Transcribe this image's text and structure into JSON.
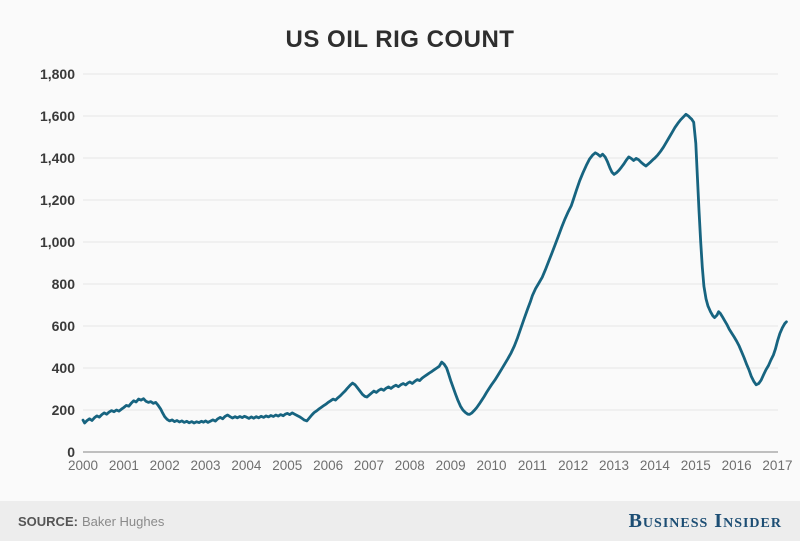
{
  "title": "US OIL RIG COUNT",
  "footer": {
    "source_label": "SOURCE:",
    "source_value": "Baker Hughes",
    "brand": "Business Insider"
  },
  "colors": {
    "background": "#fafafa",
    "line": "#176480",
    "gridline": "#ebebeb",
    "axis_line": "#ababab",
    "y_tick_text": "#3a3a3a",
    "x_tick_text": "#6f6f6f",
    "footer_bg": "#ededed",
    "brand_navy": "#1d4e74"
  },
  "chart_data": {
    "type": "line",
    "title": "US OIL RIG COUNT",
    "xlabel": "",
    "ylabel": "",
    "grid": "horizontal",
    "legend": "none",
    "x_range": [
      2000,
      2017.25
    ],
    "ylim": [
      0,
      1800
    ],
    "y_tick_values": [
      0,
      200,
      400,
      600,
      800,
      1000,
      1200,
      1400,
      1600,
      1800
    ],
    "y_tick_labels": [
      "0",
      "200",
      "400",
      "600",
      "800",
      "1,000",
      "1,200",
      "1,400",
      "1,600",
      "1,800"
    ],
    "x_tick_values": [
      2000,
      2001,
      2002,
      2003,
      2004,
      2005,
      2006,
      2007,
      2008,
      2009,
      2010,
      2011,
      2012,
      2013,
      2014,
      2015,
      2016,
      2017
    ],
    "x_tick_labels": [
      "2000",
      "2001",
      "2002",
      "2003",
      "2004",
      "2005",
      "2006",
      "2007",
      "2008",
      "2009",
      "2010",
      "2011",
      "2012",
      "2013",
      "2014",
      "2015",
      "2016",
      "2017"
    ],
    "series": [
      {
        "name": "US oil rig count",
        "color": "#176480",
        "points": [
          [
            2000.0,
            152
          ],
          [
            2000.04,
            138
          ],
          [
            2000.1,
            150
          ],
          [
            2000.16,
            158
          ],
          [
            2000.22,
            150
          ],
          [
            2000.28,
            163
          ],
          [
            2000.34,
            172
          ],
          [
            2000.4,
            166
          ],
          [
            2000.46,
            178
          ],
          [
            2000.52,
            186
          ],
          [
            2000.58,
            180
          ],
          [
            2000.64,
            190
          ],
          [
            2000.7,
            197
          ],
          [
            2000.76,
            192
          ],
          [
            2000.82,
            200
          ],
          [
            2000.88,
            195
          ],
          [
            2000.94,
            204
          ],
          [
            2001.0,
            212
          ],
          [
            2001.06,
            222
          ],
          [
            2001.12,
            218
          ],
          [
            2001.18,
            232
          ],
          [
            2001.24,
            244
          ],
          [
            2001.3,
            238
          ],
          [
            2001.36,
            252
          ],
          [
            2001.42,
            247
          ],
          [
            2001.48,
            254
          ],
          [
            2001.54,
            242
          ],
          [
            2001.6,
            236
          ],
          [
            2001.66,
            240
          ],
          [
            2001.72,
            232
          ],
          [
            2001.78,
            236
          ],
          [
            2001.84,
            222
          ],
          [
            2001.9,
            205
          ],
          [
            2001.95,
            185
          ],
          [
            2002.0,
            168
          ],
          [
            2002.06,
            155
          ],
          [
            2002.12,
            148
          ],
          [
            2002.18,
            153
          ],
          [
            2002.24,
            145
          ],
          [
            2002.3,
            150
          ],
          [
            2002.36,
            143
          ],
          [
            2002.42,
            148
          ],
          [
            2002.48,
            141
          ],
          [
            2002.54,
            146
          ],
          [
            2002.6,
            139
          ],
          [
            2002.66,
            145
          ],
          [
            2002.72,
            138
          ],
          [
            2002.78,
            144
          ],
          [
            2002.84,
            140
          ],
          [
            2002.9,
            146
          ],
          [
            2002.95,
            142
          ],
          [
            2003.0,
            148
          ],
          [
            2003.06,
            141
          ],
          [
            2003.12,
            147
          ],
          [
            2003.18,
            153
          ],
          [
            2003.24,
            147
          ],
          [
            2003.3,
            158
          ],
          [
            2003.36,
            165
          ],
          [
            2003.42,
            158
          ],
          [
            2003.48,
            170
          ],
          [
            2003.54,
            176
          ],
          [
            2003.6,
            168
          ],
          [
            2003.66,
            162
          ],
          [
            2003.72,
            168
          ],
          [
            2003.78,
            163
          ],
          [
            2003.84,
            169
          ],
          [
            2003.9,
            164
          ],
          [
            2003.95,
            170
          ],
          [
            2004.0,
            166
          ],
          [
            2004.06,
            160
          ],
          [
            2004.12,
            167
          ],
          [
            2004.18,
            161
          ],
          [
            2004.24,
            168
          ],
          [
            2004.3,
            163
          ],
          [
            2004.36,
            170
          ],
          [
            2004.42,
            165
          ],
          [
            2004.48,
            172
          ],
          [
            2004.54,
            167
          ],
          [
            2004.6,
            174
          ],
          [
            2004.66,
            169
          ],
          [
            2004.72,
            176
          ],
          [
            2004.78,
            171
          ],
          [
            2004.84,
            178
          ],
          [
            2004.9,
            173
          ],
          [
            2004.95,
            180
          ],
          [
            2005.0,
            184
          ],
          [
            2005.06,
            178
          ],
          [
            2005.12,
            186
          ],
          [
            2005.18,
            180
          ],
          [
            2005.24,
            174
          ],
          [
            2005.3,
            168
          ],
          [
            2005.36,
            160
          ],
          [
            2005.42,
            152
          ],
          [
            2005.48,
            148
          ],
          [
            2005.54,
            162
          ],
          [
            2005.6,
            176
          ],
          [
            2005.66,
            188
          ],
          [
            2005.72,
            196
          ],
          [
            2005.78,
            205
          ],
          [
            2005.84,
            214
          ],
          [
            2005.9,
            222
          ],
          [
            2005.95,
            228
          ],
          [
            2006.0,
            236
          ],
          [
            2006.06,
            244
          ],
          [
            2006.12,
            252
          ],
          [
            2006.18,
            247
          ],
          [
            2006.24,
            258
          ],
          [
            2006.3,
            268
          ],
          [
            2006.36,
            280
          ],
          [
            2006.42,
            292
          ],
          [
            2006.48,
            305
          ],
          [
            2006.54,
            318
          ],
          [
            2006.6,
            328
          ],
          [
            2006.66,
            320
          ],
          [
            2006.72,
            305
          ],
          [
            2006.78,
            290
          ],
          [
            2006.84,
            275
          ],
          [
            2006.9,
            265
          ],
          [
            2006.95,
            262
          ],
          [
            2007.0,
            270
          ],
          [
            2007.06,
            280
          ],
          [
            2007.12,
            290
          ],
          [
            2007.18,
            284
          ],
          [
            2007.24,
            294
          ],
          [
            2007.3,
            300
          ],
          [
            2007.36,
            294
          ],
          [
            2007.42,
            304
          ],
          [
            2007.48,
            310
          ],
          [
            2007.54,
            303
          ],
          [
            2007.6,
            312
          ],
          [
            2007.66,
            318
          ],
          [
            2007.72,
            311
          ],
          [
            2007.78,
            320
          ],
          [
            2007.84,
            326
          ],
          [
            2007.9,
            319
          ],
          [
            2007.95,
            328
          ],
          [
            2008.0,
            334
          ],
          [
            2008.06,
            326
          ],
          [
            2008.12,
            336
          ],
          [
            2008.18,
            345
          ],
          [
            2008.24,
            340
          ],
          [
            2008.3,
            352
          ],
          [
            2008.36,
            360
          ],
          [
            2008.42,
            368
          ],
          [
            2008.48,
            376
          ],
          [
            2008.54,
            384
          ],
          [
            2008.6,
            392
          ],
          [
            2008.66,
            400
          ],
          [
            2008.72,
            408
          ],
          [
            2008.78,
            428
          ],
          [
            2008.84,
            418
          ],
          [
            2008.9,
            400
          ],
          [
            2008.95,
            372
          ],
          [
            2009.0,
            340
          ],
          [
            2009.06,
            308
          ],
          [
            2009.12,
            275
          ],
          [
            2009.18,
            245
          ],
          [
            2009.24,
            218
          ],
          [
            2009.3,
            200
          ],
          [
            2009.36,
            188
          ],
          [
            2009.42,
            180
          ],
          [
            2009.46,
            179
          ],
          [
            2009.52,
            186
          ],
          [
            2009.58,
            198
          ],
          [
            2009.64,
            212
          ],
          [
            2009.7,
            228
          ],
          [
            2009.76,
            246
          ],
          [
            2009.82,
            264
          ],
          [
            2009.88,
            284
          ],
          [
            2009.94,
            302
          ],
          [
            2010.0,
            320
          ],
          [
            2010.08,
            342
          ],
          [
            2010.16,
            366
          ],
          [
            2010.24,
            392
          ],
          [
            2010.32,
            418
          ],
          [
            2010.4,
            444
          ],
          [
            2010.48,
            472
          ],
          [
            2010.56,
            505
          ],
          [
            2010.64,
            545
          ],
          [
            2010.72,
            590
          ],
          [
            2010.8,
            635
          ],
          [
            2010.88,
            678
          ],
          [
            2010.95,
            715
          ],
          [
            2011.0,
            745
          ],
          [
            2011.08,
            778
          ],
          [
            2011.16,
            805
          ],
          [
            2011.24,
            832
          ],
          [
            2011.32,
            868
          ],
          [
            2011.4,
            908
          ],
          [
            2011.48,
            948
          ],
          [
            2011.56,
            988
          ],
          [
            2011.64,
            1030
          ],
          [
            2011.72,
            1072
          ],
          [
            2011.8,
            1110
          ],
          [
            2011.88,
            1145
          ],
          [
            2011.95,
            1172
          ],
          [
            2012.0,
            1200
          ],
          [
            2012.08,
            1248
          ],
          [
            2012.16,
            1292
          ],
          [
            2012.24,
            1330
          ],
          [
            2012.32,
            1365
          ],
          [
            2012.4,
            1395
          ],
          [
            2012.48,
            1415
          ],
          [
            2012.54,
            1425
          ],
          [
            2012.6,
            1418
          ],
          [
            2012.66,
            1408
          ],
          [
            2012.72,
            1418
          ],
          [
            2012.78,
            1405
          ],
          [
            2012.84,
            1382
          ],
          [
            2012.9,
            1352
          ],
          [
            2012.95,
            1332
          ],
          [
            2013.0,
            1322
          ],
          [
            2013.06,
            1330
          ],
          [
            2013.12,
            1342
          ],
          [
            2013.18,
            1356
          ],
          [
            2013.24,
            1372
          ],
          [
            2013.3,
            1390
          ],
          [
            2013.36,
            1405
          ],
          [
            2013.42,
            1398
          ],
          [
            2013.48,
            1388
          ],
          [
            2013.54,
            1398
          ],
          [
            2013.6,
            1392
          ],
          [
            2013.66,
            1380
          ],
          [
            2013.72,
            1370
          ],
          [
            2013.78,
            1362
          ],
          [
            2013.84,
            1372
          ],
          [
            2013.9,
            1382
          ],
          [
            2013.95,
            1392
          ],
          [
            2014.0,
            1400
          ],
          [
            2014.07,
            1415
          ],
          [
            2014.14,
            1432
          ],
          [
            2014.21,
            1452
          ],
          [
            2014.28,
            1475
          ],
          [
            2014.35,
            1498
          ],
          [
            2014.42,
            1522
          ],
          [
            2014.49,
            1545
          ],
          [
            2014.56,
            1565
          ],
          [
            2014.63,
            1582
          ],
          [
            2014.7,
            1596
          ],
          [
            2014.76,
            1608
          ],
          [
            2014.82,
            1600
          ],
          [
            2014.86,
            1592
          ],
          [
            2014.9,
            1585
          ],
          [
            2014.95,
            1570
          ],
          [
            2015.0,
            1470
          ],
          [
            2015.04,
            1310
          ],
          [
            2015.08,
            1150
          ],
          [
            2015.12,
            1000
          ],
          [
            2015.16,
            880
          ],
          [
            2015.2,
            790
          ],
          [
            2015.25,
            730
          ],
          [
            2015.3,
            695
          ],
          [
            2015.36,
            668
          ],
          [
            2015.42,
            648
          ],
          [
            2015.46,
            640
          ],
          [
            2015.52,
            652
          ],
          [
            2015.56,
            668
          ],
          [
            2015.6,
            660
          ],
          [
            2015.65,
            645
          ],
          [
            2015.7,
            628
          ],
          [
            2015.76,
            608
          ],
          [
            2015.82,
            585
          ],
          [
            2015.88,
            566
          ],
          [
            2015.94,
            548
          ],
          [
            2016.0,
            528
          ],
          [
            2016.06,
            505
          ],
          [
            2016.12,
            478
          ],
          [
            2016.18,
            450
          ],
          [
            2016.24,
            420
          ],
          [
            2016.3,
            392
          ],
          [
            2016.36,
            360
          ],
          [
            2016.42,
            336
          ],
          [
            2016.48,
            320
          ],
          [
            2016.54,
            326
          ],
          [
            2016.6,
            342
          ],
          [
            2016.66,
            368
          ],
          [
            2016.72,
            392
          ],
          [
            2016.78,
            412
          ],
          [
            2016.84,
            438
          ],
          [
            2016.9,
            462
          ],
          [
            2016.95,
            490
          ],
          [
            2017.0,
            528
          ],
          [
            2017.06,
            565
          ],
          [
            2017.12,
            592
          ],
          [
            2017.18,
            612
          ],
          [
            2017.22,
            620
          ]
        ]
      }
    ]
  }
}
